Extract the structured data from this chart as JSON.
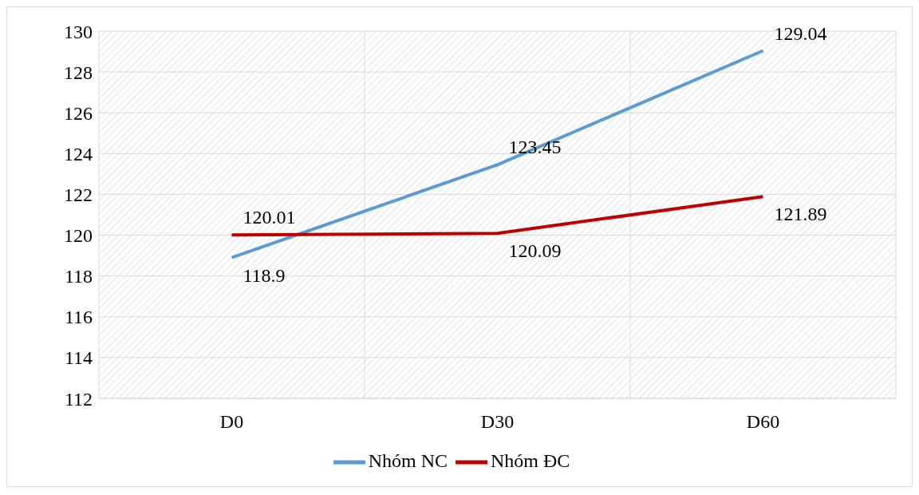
{
  "chart_data": {
    "type": "line",
    "categories": [
      "D0",
      "D30",
      "D60"
    ],
    "series": [
      {
        "name": "Nhóm NC",
        "color": "#5b9bd5",
        "values": [
          118.9,
          123.45,
          129.04
        ]
      },
      {
        "name": "Nhóm ĐC",
        "color": "#c00000",
        "values": [
          120.01,
          120.09,
          121.89
        ]
      }
    ],
    "ylim": [
      112,
      130
    ],
    "yticks": [
      112,
      114,
      116,
      118,
      120,
      122,
      124,
      126,
      128,
      130
    ],
    "grid": true,
    "legend": "bottom",
    "data_labels": true,
    "marker": "none",
    "line_style": "solid"
  }
}
